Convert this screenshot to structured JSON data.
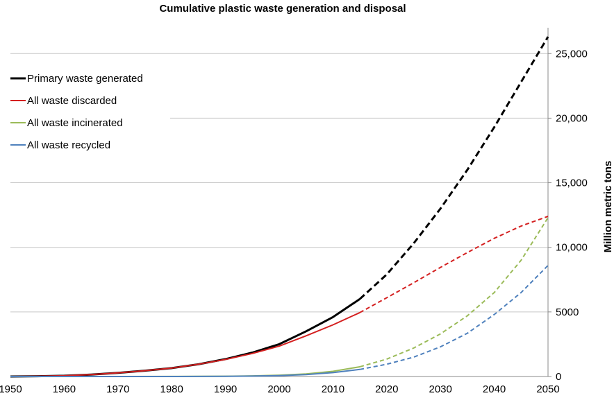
{
  "chart_data": {
    "type": "line",
    "title": "Cumulative plastic waste generation and disposal",
    "xlabel": "",
    "ylabel": "Million metric tons",
    "xlim": [
      1950,
      2050
    ],
    "ylim": [
      0,
      27000
    ],
    "x_ticks": [
      "1950",
      "1960",
      "1970",
      "1980",
      "1990",
      "2000",
      "2010",
      "2020",
      "2030",
      "2040",
      "2050"
    ],
    "y_ticks": [
      {
        "value": 0,
        "label": "0"
      },
      {
        "value": 5000,
        "label": "5000"
      },
      {
        "value": 10000,
        "label": "10,000"
      },
      {
        "value": 15000,
        "label": "15,000"
      },
      {
        "value": 20000,
        "label": "20,000"
      },
      {
        "value": 25000,
        "label": "25,000"
      }
    ],
    "y_axis_side": "right",
    "grid": "horizontal",
    "legend_position": "top-left",
    "projection_start": 2015,
    "projection_style": "dashed",
    "series": [
      {
        "name": "Primary waste generated",
        "color": "#000000",
        "x": [
          1950,
          1955,
          1960,
          1965,
          1970,
          1975,
          1980,
          1985,
          1990,
          1995,
          2000,
          2005,
          2010,
          2015,
          2020,
          2025,
          2030,
          2035,
          2040,
          2045,
          2050
        ],
        "values": [
          0,
          20,
          60,
          150,
          280,
          450,
          650,
          950,
          1350,
          1850,
          2500,
          3500,
          4600,
          6000,
          7900,
          10300,
          13000,
          16000,
          19300,
          22800,
          26300
        ]
      },
      {
        "name": "All waste discarded",
        "color": "#d42020",
        "x": [
          1950,
          1955,
          1960,
          1965,
          1970,
          1975,
          1980,
          1985,
          1990,
          1995,
          2000,
          2005,
          2010,
          2015,
          2020,
          2025,
          2030,
          2035,
          2040,
          2045,
          2050
        ],
        "values": [
          0,
          20,
          60,
          150,
          280,
          450,
          650,
          950,
          1320,
          1780,
          2350,
          3150,
          4000,
          4950,
          6100,
          7250,
          8450,
          9600,
          10700,
          11650,
          12400
        ]
      },
      {
        "name": "All waste incinerated",
        "color": "#9bbb59",
        "x": [
          1950,
          1960,
          1970,
          1980,
          1990,
          1995,
          2000,
          2005,
          2010,
          2015,
          2020,
          2025,
          2030,
          2035,
          2040,
          2045,
          2050
        ],
        "values": [
          0,
          0,
          0,
          5,
          20,
          50,
          100,
          200,
          400,
          750,
          1350,
          2200,
          3300,
          4700,
          6500,
          9000,
          12300
        ]
      },
      {
        "name": "All waste recycled",
        "color": "#4f81bd",
        "x": [
          1950,
          1960,
          1970,
          1980,
          1990,
          1995,
          2000,
          2005,
          2010,
          2015,
          2020,
          2025,
          2030,
          2035,
          2040,
          2045,
          2050
        ],
        "values": [
          0,
          0,
          0,
          0,
          10,
          30,
          70,
          150,
          300,
          550,
          950,
          1500,
          2300,
          3350,
          4800,
          6500,
          8600
        ]
      }
    ]
  }
}
